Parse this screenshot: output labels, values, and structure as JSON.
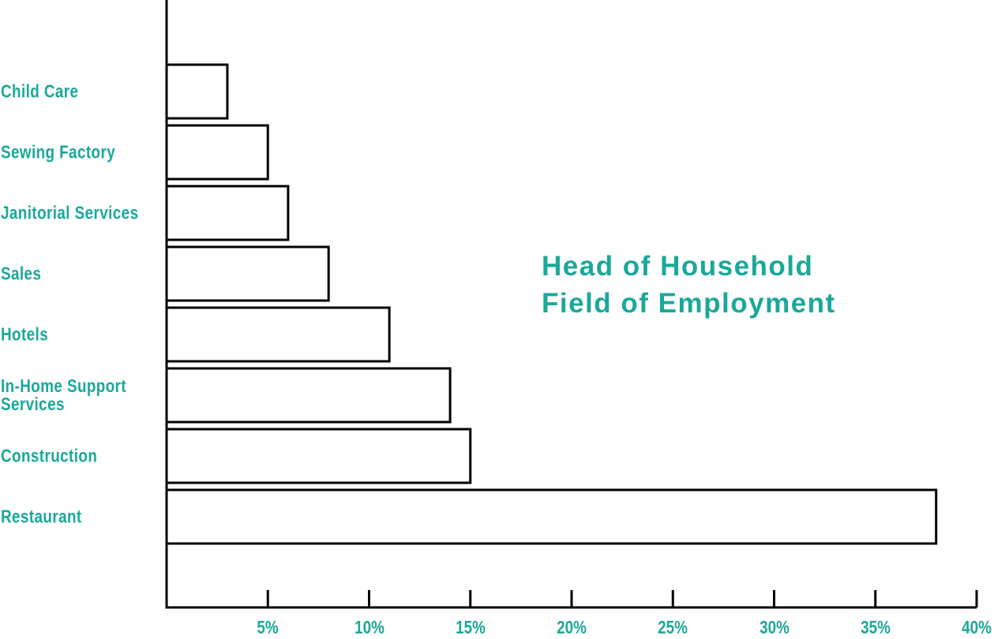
{
  "chart_data": {
    "type": "barh",
    "title": "Head of Household\nField of Employment",
    "categories": [
      "Child Care",
      "Sewing Factory",
      "Janitorial Services",
      "Sales",
      "Hotels",
      "In-Home Support\nServices",
      "Construction",
      "Restaurant"
    ],
    "values": [
      3,
      5,
      6,
      8,
      11,
      14,
      15,
      38
    ],
    "color": "#ffffff",
    "xlim": [
      0,
      40
    ],
    "xticks": [
      {
        "value": 5,
        "label": "5%"
      },
      {
        "value": 10,
        "label": "10%"
      },
      {
        "value": 15,
        "label": "15%"
      },
      {
        "value": 20,
        "label": "20%"
      },
      {
        "value": 25,
        "label": "25%"
      },
      {
        "value": 30,
        "label": "30%"
      },
      {
        "value": 35,
        "label": "35%"
      },
      {
        "value": 40,
        "label": "40%"
      }
    ],
    "grid": false
  }
}
